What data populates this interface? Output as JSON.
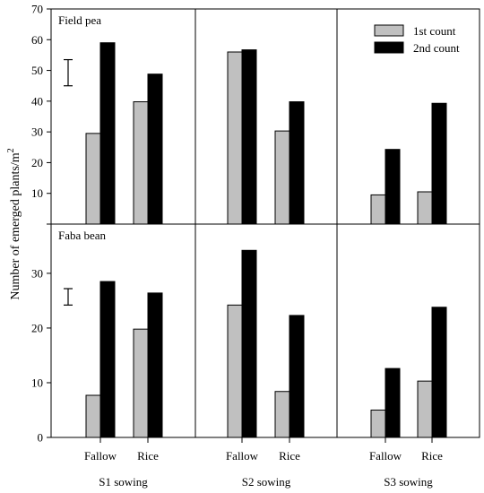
{
  "ylabel": "Number of emerged plants/m",
  "ylabel_sup": "2",
  "legend": {
    "placement": "top-right",
    "entries": [
      {
        "label": "1st count",
        "color": "#c0c0c0"
      },
      {
        "label": "2nd count",
        "color": "#000000"
      }
    ]
  },
  "sowings": [
    "S1 sowing",
    "S2 sowing",
    "S3 sowing"
  ],
  "categories": [
    "Fallow",
    "Rice"
  ],
  "chart_data": [
    {
      "type": "bar",
      "crop": "Field pea",
      "ylim": [
        0,
        70
      ],
      "yticks": [
        0,
        10,
        20,
        30,
        40,
        50,
        60,
        70
      ],
      "error_bar": [
        45,
        53.5
      ],
      "panels": [
        {
          "sowing": "S1 sowing",
          "categories": [
            "Fallow",
            "Rice"
          ],
          "series": [
            {
              "name": "1st count",
              "values": [
                29.5,
                39.8
              ]
            },
            {
              "name": "2nd count",
              "values": [
                59,
                48.8
              ]
            }
          ]
        },
        {
          "sowing": "S2 sowing",
          "categories": [
            "Fallow",
            "Rice"
          ],
          "series": [
            {
              "name": "1st count",
              "values": [
                56,
                30.3
              ]
            },
            {
              "name": "2nd count",
              "values": [
                56.7,
                39.8
              ]
            }
          ]
        },
        {
          "sowing": "S3 sowing",
          "categories": [
            "Fallow",
            "Rice"
          ],
          "series": [
            {
              "name": "1st count",
              "values": [
                9.5,
                10.5
              ]
            },
            {
              "name": "2nd count",
              "values": [
                24.3,
                39.3
              ]
            }
          ]
        }
      ]
    },
    {
      "type": "bar",
      "crop": "Faba bean",
      "ylim": [
        0,
        39
      ],
      "yticks": [
        0,
        10,
        20,
        30
      ],
      "error_bar": [
        24.2,
        27.2
      ],
      "panels": [
        {
          "sowing": "S1 sowing",
          "categories": [
            "Fallow",
            "Rice"
          ],
          "series": [
            {
              "name": "1st count",
              "values": [
                7.7,
                19.8
              ]
            },
            {
              "name": "2nd count",
              "values": [
                28.5,
                26.4
              ]
            }
          ]
        },
        {
          "sowing": "S2 sowing",
          "categories": [
            "Fallow",
            "Rice"
          ],
          "series": [
            {
              "name": "1st count",
              "values": [
                24.2,
                8.4
              ]
            },
            {
              "name": "2nd count",
              "values": [
                34.2,
                22.3
              ]
            }
          ]
        },
        {
          "sowing": "S3 sowing",
          "categories": [
            "Fallow",
            "Rice"
          ],
          "series": [
            {
              "name": "1st count",
              "values": [
                5,
                10.3
              ]
            },
            {
              "name": "2nd count",
              "values": [
                12.6,
                23.8
              ]
            }
          ]
        }
      ]
    }
  ]
}
